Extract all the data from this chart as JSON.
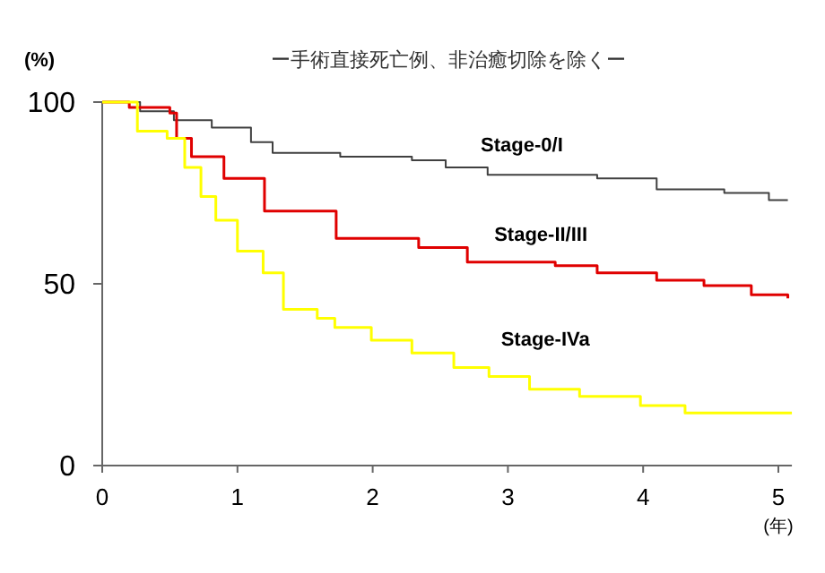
{
  "chart_data": {
    "type": "step",
    "title": "ー手術直接死亡例、非治癒切除を除くー",
    "ylabel": "(%)",
    "xlabel": "(年)",
    "xlim": [
      0,
      5.1
    ],
    "xticks": [
      0,
      1,
      2,
      3,
      4,
      5
    ],
    "ylim": [
      0,
      100
    ],
    "yticks": [
      0,
      50,
      100
    ],
    "grid": false,
    "series": [
      {
        "name": "Stage-0/I",
        "color": "#404040",
        "x": [
          0,
          0.28,
          0.53,
          0.81,
          1.1,
          1.26,
          1.76,
          2.29,
          2.54,
          2.85,
          3.66,
          4.1,
          4.6,
          4.93,
          5.07
        ],
        "values": [
          100,
          97.5,
          95,
          93,
          89,
          86,
          85,
          84,
          82,
          80,
          79,
          76,
          75,
          73,
          73
        ]
      },
      {
        "name": "Stage-II/III",
        "color": "#e00000",
        "x": [
          0,
          0.2,
          0.5,
          0.55,
          0.66,
          0.9,
          1.2,
          1.73,
          2.34,
          2.7,
          3.35,
          3.66,
          4.1,
          4.45,
          4.8,
          5.07
        ],
        "values": [
          100,
          98.5,
          97,
          90,
          85,
          79,
          70,
          62.5,
          60,
          56,
          55,
          53,
          51,
          49.5,
          47,
          46
        ]
      },
      {
        "name": "Stage-IVa",
        "color": "#ffff00",
        "x": [
          0,
          0.26,
          0.48,
          0.61,
          0.73,
          0.84,
          1.0,
          1.19,
          1.34,
          1.59,
          1.72,
          1.99,
          2.29,
          2.6,
          2.86,
          3.16,
          3.53,
          3.98,
          4.31,
          5.1
        ],
        "values": [
          100,
          92,
          90,
          82,
          74,
          67.5,
          59,
          53,
          43,
          40.5,
          38,
          34.5,
          31,
          27,
          24.5,
          21,
          19,
          16.5,
          14.5,
          14.5
        ]
      }
    ]
  }
}
